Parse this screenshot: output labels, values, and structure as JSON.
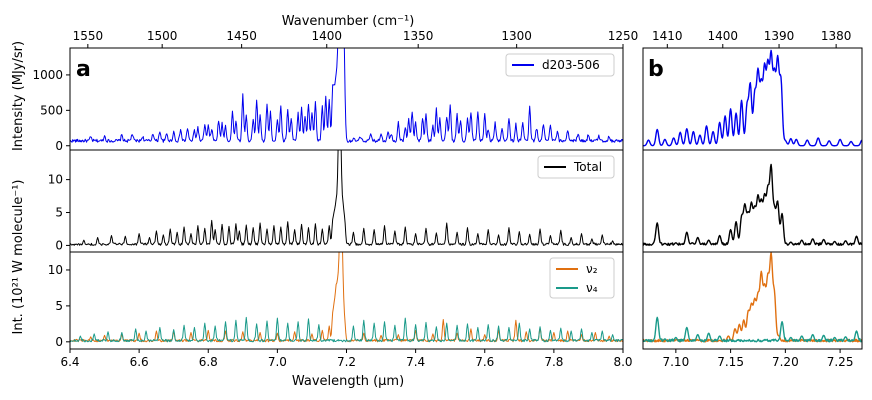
{
  "figure": {
    "top_axis_label": "Wavenumber (cm⁻¹)",
    "bottom_axis_label": "Wavelength (μm)",
    "ylabel_top": "Intensity (MJy/sr)",
    "ylabel_lower": "Int. (10²¹ W molecule⁻¹)",
    "panel_a": "a",
    "panel_b": "b"
  },
  "chart_data": [
    {
      "panel": "a",
      "row": 1,
      "type": "line",
      "xlim": [
        6.4,
        8.0
      ],
      "ylim": [
        -60,
        1380
      ],
      "yticks": [
        0,
        500,
        1000
      ],
      "top_xticks": [
        1550,
        1500,
        1450,
        1400,
        1350,
        1300,
        1250
      ],
      "series": [
        {
          "name": "d203-506",
          "color": "#0000ee",
          "baseline": 70,
          "noise": 22,
          "x": [
            6.46,
            6.5,
            6.55,
            6.58,
            6.61,
            6.64,
            6.66,
            6.68,
            6.7,
            6.72,
            6.74,
            6.76,
            6.77,
            6.79,
            6.8,
            6.81,
            6.83,
            6.84,
            6.85,
            6.87,
            6.88,
            6.9,
            6.91,
            6.93,
            6.94,
            6.95,
            6.97,
            6.98,
            7.0,
            7.01,
            7.03,
            7.04,
            7.06,
            7.07,
            7.08,
            7.09,
            7.1,
            7.11,
            7.13,
            7.14,
            7.15,
            7.16,
            7.165,
            7.17,
            7.175,
            7.178,
            7.182,
            7.185,
            7.188,
            7.191,
            7.194,
            7.2,
            7.22,
            7.24,
            7.27,
            7.3,
            7.32,
            7.33,
            7.35,
            7.37,
            7.38,
            7.39,
            7.4,
            7.42,
            7.43,
            7.45,
            7.46,
            7.47,
            7.49,
            7.5,
            7.52,
            7.53,
            7.55,
            7.56,
            7.58,
            7.6,
            7.61,
            7.63,
            7.65,
            7.67,
            7.69,
            7.71,
            7.73,
            7.75,
            7.77,
            7.79,
            7.81,
            7.84,
            7.87,
            7.9,
            7.93,
            7.96
          ],
          "y": [
            120,
            140,
            150,
            170,
            130,
            180,
            210,
            170,
            200,
            230,
            250,
            220,
            260,
            300,
            280,
            240,
            350,
            310,
            280,
            480,
            360,
            720,
            430,
            380,
            650,
            420,
            600,
            470,
            380,
            560,
            520,
            400,
            460,
            550,
            420,
            600,
            480,
            620,
            550,
            700,
            640,
            760,
            680,
            820,
            950,
            1000,
            1230,
            1150,
            1100,
            1060,
            800,
            70,
            90,
            120,
            150,
            180,
            210,
            170,
            330,
            260,
            370,
            480,
            320,
            400,
            460,
            280,
            520,
            380,
            420,
            580,
            440,
            360,
            390,
            480,
            470,
            450,
            240,
            320,
            260,
            380,
            300,
            330,
            540,
            250,
            310,
            280,
            190,
            230,
            180,
            160,
            140,
            130
          ]
        }
      ]
    },
    {
      "panel": "a",
      "row": 2,
      "type": "line",
      "xlim": [
        6.4,
        8.0
      ],
      "ylim": [
        -1,
        14.5
      ],
      "yticks": [
        0,
        5,
        10
      ],
      "series": [
        {
          "name": "Total",
          "color": "#000000",
          "x": [
            6.44,
            6.48,
            6.52,
            6.56,
            6.6,
            6.63,
            6.65,
            6.67,
            6.69,
            6.71,
            6.73,
            6.75,
            6.77,
            6.79,
            6.81,
            6.82,
            6.84,
            6.86,
            6.88,
            6.89,
            6.91,
            6.93,
            6.95,
            6.97,
            6.99,
            7.01,
            7.03,
            7.05,
            7.07,
            7.09,
            7.11,
            7.13,
            7.15,
            7.16,
            7.165,
            7.17,
            7.175,
            7.178,
            7.18,
            7.182,
            7.185,
            7.19,
            7.195,
            7.22,
            7.25,
            7.28,
            7.31,
            7.34,
            7.37,
            7.4,
            7.43,
            7.46,
            7.49,
            7.52,
            7.55,
            7.58,
            7.61,
            7.64,
            7.67,
            7.7,
            7.73,
            7.76,
            7.79,
            7.82,
            7.85,
            7.88,
            7.91,
            7.94,
            7.97
          ],
          "y": [
            0.8,
            1.2,
            1.5,
            1.4,
            1.8,
            1.2,
            2.2,
            1.6,
            2.5,
            2.0,
            2.8,
            1.8,
            3.0,
            2.6,
            3.8,
            2.4,
            3.2,
            2.9,
            3.3,
            2.2,
            3.1,
            2.7,
            3.4,
            2.5,
            3.0,
            2.8,
            3.6,
            2.4,
            3.2,
            2.7,
            3.3,
            2.5,
            3.0,
            3.4,
            4.2,
            5.6,
            6.8,
            7.3,
            11.4,
            8.2,
            7.0,
            5.2,
            3.4,
            2.0,
            2.6,
            2.4,
            3.0,
            2.2,
            2.8,
            1.8,
            2.6,
            1.9,
            3.4,
            2.0,
            2.7,
            1.8,
            2.4,
            1.6,
            2.7,
            2.1,
            1.7,
            2.5,
            1.5,
            2.3,
            1.2,
            1.8,
            1.0,
            1.6,
            0.7
          ]
        }
      ]
    },
    {
      "panel": "a",
      "row": 3,
      "type": "line",
      "xlim": [
        6.4,
        8.0
      ],
      "ylim": [
        -1,
        12.5
      ],
      "yticks": [
        0,
        5,
        10
      ],
      "xticks": [
        6.4,
        6.6,
        6.8,
        7.0,
        7.2,
        7.4,
        7.6,
        7.8,
        8.0
      ],
      "series": [
        {
          "name": "ν₂",
          "color": "#e07010",
          "x": [
            6.46,
            6.5,
            6.55,
            6.6,
            6.65,
            6.7,
            6.75,
            6.8,
            6.85,
            6.9,
            6.95,
            7.0,
            7.05,
            7.1,
            7.13,
            7.15,
            7.16,
            7.165,
            7.17,
            7.175,
            7.18,
            7.183,
            7.186,
            7.19,
            7.195,
            7.25,
            7.3,
            7.35,
            7.4,
            7.45,
            7.48,
            7.52,
            7.56,
            7.6,
            7.64,
            7.69,
            7.72,
            7.76,
            7.8,
            7.84,
            7.88,
            7.92,
            7.96
          ],
          "y": [
            0.7,
            0.9,
            1.0,
            1.2,
            1.5,
            1.4,
            1.3,
            1.6,
            1.5,
            1.4,
            1.3,
            1.2,
            1.4,
            1.1,
            1.6,
            2.2,
            3.5,
            4.5,
            6.5,
            7.0,
            10.0,
            7.8,
            11.4,
            6.0,
            2.5,
            1.2,
            0.9,
            1.0,
            1.6,
            1.1,
            3.1,
            1.2,
            1.8,
            1.0,
            1.6,
            3.0,
            1.4,
            1.9,
            1.3,
            1.5,
            1.0,
            1.3,
            0.8
          ]
        },
        {
          "name": "ν₄",
          "color": "#1a9a8a",
          "x": [
            6.43,
            6.47,
            6.51,
            6.55,
            6.59,
            6.62,
            6.66,
            6.7,
            6.73,
            6.76,
            6.79,
            6.82,
            6.85,
            6.88,
            6.91,
            6.94,
            6.97,
            7.0,
            7.03,
            7.06,
            7.09,
            7.12,
            7.22,
            7.25,
            7.28,
            7.31,
            7.34,
            7.37,
            7.4,
            7.43,
            7.46,
            7.49,
            7.52,
            7.55,
            7.58,
            7.61,
            7.64,
            7.67,
            7.7,
            7.73,
            7.76,
            7.79,
            7.82,
            7.85,
            7.88,
            7.91,
            7.94,
            7.97
          ],
          "y": [
            0.8,
            1.1,
            1.4,
            1.3,
            1.8,
            1.5,
            2.0,
            1.7,
            2.3,
            2.0,
            2.6,
            2.2,
            2.8,
            3.0,
            3.4,
            2.5,
            2.9,
            3.3,
            2.6,
            2.8,
            3.2,
            2.4,
            2.2,
            3.0,
            2.6,
            2.8,
            2.3,
            3.3,
            2.4,
            2.7,
            2.1,
            2.6,
            2.3,
            2.5,
            2.0,
            2.4,
            2.2,
            2.0,
            2.6,
            1.8,
            2.1,
            1.6,
            1.9,
            1.5,
            1.8,
            1.3,
            1.5,
            1.0
          ]
        }
      ]
    },
    {
      "panel": "b",
      "row": 1,
      "type": "line",
      "xlim": [
        7.07,
        7.27
      ],
      "ylim": [
        -60,
        1380
      ],
      "top_xticks": [
        1410,
        1400,
        1390,
        1380
      ],
      "series": [
        {
          "name": "d203-506",
          "color": "#0000ee",
          "x": [
            7.075,
            7.083,
            7.09,
            7.098,
            7.104,
            7.11,
            7.116,
            7.122,
            7.128,
            7.134,
            7.14,
            7.145,
            7.15,
            7.155,
            7.16,
            7.165,
            7.168,
            7.172,
            7.175,
            7.178,
            7.181,
            7.184,
            7.187,
            7.19,
            7.193,
            7.196,
            7.2,
            7.205,
            7.21,
            7.22,
            7.23,
            7.24,
            7.25,
            7.26,
            7.27
          ],
          "y": [
            80,
            230,
            90,
            110,
            190,
            240,
            200,
            150,
            280,
            200,
            330,
            420,
            520,
            460,
            640,
            560,
            850,
            720,
            1000,
            820,
            1050,
            1080,
            1220,
            950,
            1160,
            900,
            70,
            100,
            90,
            80,
            110,
            70,
            90,
            60,
            80
          ]
        }
      ]
    },
    {
      "panel": "b",
      "row": 2,
      "type": "line",
      "xlim": [
        7.07,
        7.27
      ],
      "ylim": [
        -1,
        14.5
      ],
      "series": [
        {
          "name": "Total",
          "color": "#000000",
          "x": [
            7.08,
            7.083,
            7.09,
            7.1,
            7.11,
            7.115,
            7.12,
            7.13,
            7.14,
            7.15,
            7.155,
            7.16,
            7.163,
            7.166,
            7.169,
            7.172,
            7.175,
            7.178,
            7.181,
            7.184,
            7.187,
            7.19,
            7.193,
            7.197,
            7.205,
            7.215,
            7.225,
            7.235,
            7.245,
            7.255,
            7.265
          ],
          "y": [
            0.3,
            3.4,
            0.3,
            0.4,
            2.0,
            0.4,
            1.2,
            0.8,
            1.5,
            2.4,
            3.6,
            4.2,
            5.8,
            4.4,
            6.0,
            5.2,
            7.0,
            6.2,
            7.0,
            8.0,
            11.5,
            5.0,
            6.4,
            4.8,
            0.5,
            0.8,
            1.0,
            0.9,
            0.6,
            0.7,
            1.4
          ]
        }
      ]
    },
    {
      "panel": "b",
      "row": 3,
      "type": "line",
      "xlim": [
        7.07,
        7.27
      ],
      "ylim": [
        -1,
        12.5
      ],
      "xticks": [
        7.1,
        7.15,
        7.2,
        7.25
      ],
      "series": [
        {
          "name": "ν₂",
          "color": "#e07010",
          "x": [
            7.14,
            7.148,
            7.154,
            7.158,
            7.162,
            7.166,
            7.169,
            7.172,
            7.175,
            7.178,
            7.181,
            7.184,
            7.187,
            7.19,
            7.194
          ],
          "y": [
            0.2,
            0.8,
            1.8,
            2.4,
            3.0,
            4.0,
            4.8,
            5.4,
            6.0,
            9.0,
            7.0,
            8.4,
            11.5,
            6.5,
            0.8
          ]
        },
        {
          "name": "ν₄",
          "color": "#1a9a8a",
          "x": [
            7.083,
            7.09,
            7.1,
            7.11,
            7.12,
            7.13,
            7.14,
            7.197,
            7.205,
            7.215,
            7.225,
            7.235,
            7.245,
            7.255,
            7.265
          ],
          "y": [
            3.4,
            0.4,
            0.6,
            2.0,
            1.0,
            1.2,
            0.8,
            2.8,
            0.6,
            0.8,
            1.0,
            0.9,
            0.6,
            0.7,
            1.5
          ]
        }
      ]
    }
  ]
}
